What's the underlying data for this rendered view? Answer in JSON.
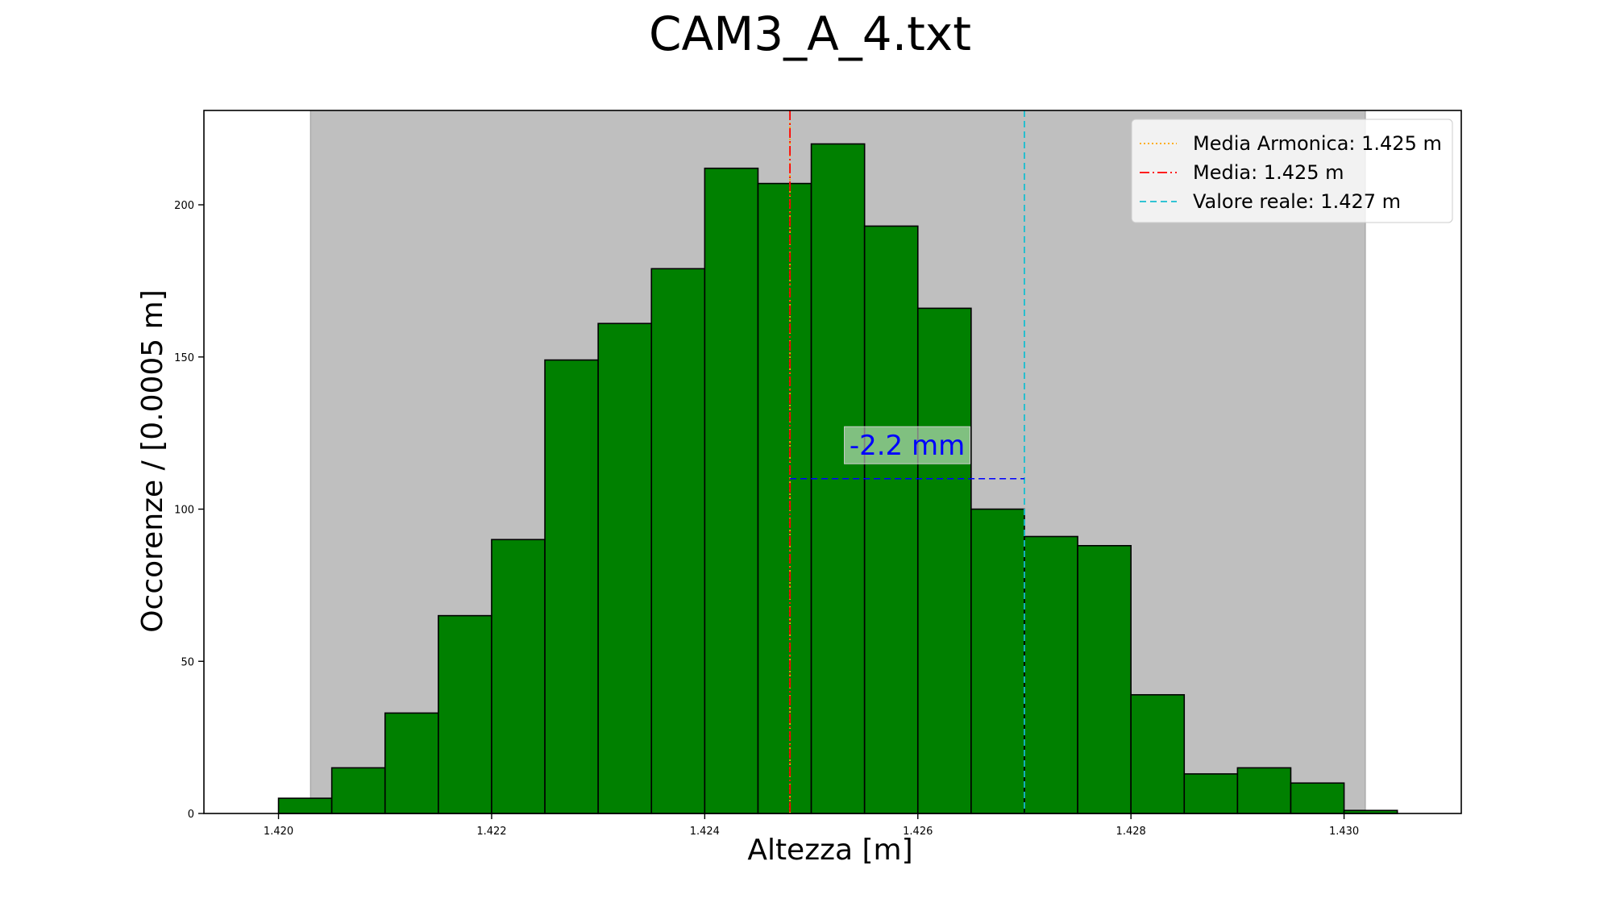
{
  "chart_data": {
    "type": "bar",
    "title": "CAM3_A_4.txt",
    "xlabel": "Altezza [m]",
    "ylabel": "Occorenze / [0.0005 m]",
    "xlim": [
      1.4193,
      1.4311
    ],
    "ylim": [
      0,
      231
    ],
    "bin_width": 0.0005,
    "bin_start": 1.42,
    "values": [
      5,
      15,
      33,
      65,
      90,
      149,
      161,
      179,
      212,
      207,
      220,
      193,
      166,
      100,
      91,
      88,
      39,
      13,
      15,
      10,
      1
    ],
    "x_ticks": [
      1.42,
      1.422,
      1.424,
      1.426,
      1.428,
      1.43
    ],
    "x_tick_labels": [
      "1.420",
      "1.422",
      "1.424",
      "1.426",
      "1.428",
      "1.430"
    ],
    "y_ticks": [
      0,
      50,
      100,
      150,
      200
    ],
    "y_tick_labels": [
      "0",
      "50",
      "100",
      "150",
      "200"
    ],
    "shaded_range": [
      1.4203,
      1.4302
    ],
    "vlines": [
      {
        "name": "Media Armonica: 1.425 m",
        "x": 1.4248,
        "color": "#ffa500",
        "style": "dotted"
      },
      {
        "name": "Media: 1.425 m",
        "x": 1.4248,
        "color": "#ff0000",
        "style": "dashdot"
      },
      {
        "name": "Valore reale: 1.427 m",
        "x": 1.427,
        "color": "#17becf",
        "style": "dashed"
      }
    ],
    "difference_marker": {
      "from": 1.4248,
      "to": 1.427,
      "y": 110,
      "color": "#0000ff",
      "label": "-2.2 mm",
      "label_y": 121
    },
    "bar_color": "#008000",
    "shade_color": "#bfbfbf",
    "grid": false,
    "legend_position": "top-right"
  }
}
